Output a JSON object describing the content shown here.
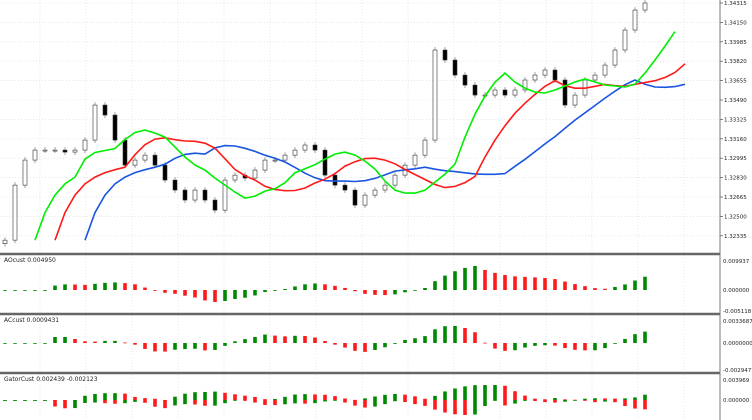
{
  "colors": {
    "background": "#ffffff",
    "grid": "#d8d8d8",
    "lips": "#00ee00",
    "teeth": "#ff1a1a",
    "jaw": "#1a55e0",
    "up_bar": "#008800",
    "down_bar": "#ff1a1a",
    "separator": "#666666",
    "candle_wick": "#888888"
  },
  "main": {
    "price_axis_labels": [
      "1.34315",
      "1.34150",
      "1.33985",
      "1.33820",
      "1.33655",
      "1.33490",
      "1.33325",
      "1.33160",
      "1.32995",
      "1.32830",
      "1.32665",
      "1.32500",
      "1.32335"
    ]
  },
  "panels": [
    {
      "label": "AOcust 0.004950",
      "axis_labels": [
        "0.009937",
        "0.000000",
        "-0.005118"
      ]
    },
    {
      "label": "ACcust 0.0009431",
      "axis_labels": [
        "0.0033687",
        "0.0000000",
        "-0.0029477"
      ]
    },
    {
      "label": "GatorCust 0.002439 -0.002123",
      "axis_labels": [
        "0.003969",
        "0.000000"
      ]
    }
  ],
  "chart_data": {
    "type": "candlestick",
    "ylim": [
      1.32235,
      1.34315
    ],
    "grid": true,
    "close": [
      1.32298,
      1.32766,
      1.32979,
      1.33064,
      1.33064,
      1.33064,
      1.33047,
      1.33064,
      1.33149,
      1.33447,
      1.33362,
      1.33149,
      1.32936,
      1.32979,
      1.33021,
      1.32936,
      1.32809,
      1.32724,
      1.32639,
      1.32724,
      1.32639,
      1.32553,
      1.32809,
      1.32851,
      1.32826,
      1.32894,
      1.32979,
      1.32979,
      1.33021,
      1.33064,
      1.33107,
      1.33064,
      1.32851,
      1.32766,
      1.32724,
      1.32596,
      1.32681,
      1.32724,
      1.32766,
      1.32851,
      1.32936,
      1.33021,
      1.33149,
      1.33915,
      1.3383,
      1.33702,
      1.33617,
      1.33532,
      1.33532,
      1.33575,
      1.33532,
      1.33575,
      1.3366,
      1.33702,
      1.33745,
      1.3366,
      1.33447,
      1.33532,
      1.3366,
      1.33702,
      1.33787,
      1.33915,
      1.34085,
      1.34255,
      1.34315
    ]
  }
}
